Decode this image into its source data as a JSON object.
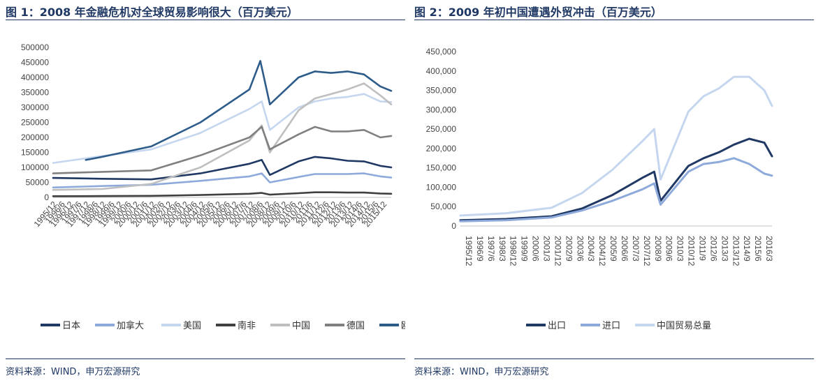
{
  "charts": [
    {
      "title": "图 1：2008 年金融危机对全球贸易影响很大（百万美元）",
      "source": "资料来源：WIND，申万宏源研究",
      "chart_data": {
        "type": "line",
        "title": "图 1：2008 年金融危机对全球贸易影响很大（百万美元）",
        "xlabel": "",
        "ylabel": "",
        "ylim": [
          0,
          500000
        ],
        "yticks": [
          0,
          50000,
          100000,
          150000,
          200000,
          250000,
          300000,
          350000,
          400000,
          450000,
          500000
        ],
        "ytick_labels": [
          "0",
          "50000",
          "100000",
          "150000",
          "200000",
          "250000",
          "300000",
          "350000",
          "400000",
          "450000",
          "500000"
        ],
        "x_start": "1995/12",
        "x_end": "2016/8",
        "x_tick_labels": [
          "1995/12",
          "1996/6",
          "1996/12",
          "1997/6",
          "1997/12",
          "1998/6",
          "1998/12",
          "1999/6",
          "1999/12",
          "2000/6",
          "2000/12",
          "2001/6",
          "2001/12",
          "2002/6",
          "2002/12",
          "2003/6",
          "2003/12",
          "2004/6",
          "2004/12",
          "2005/6",
          "2005/12",
          "2006/6",
          "2006/12",
          "2007/6",
          "2007/12",
          "2008/6",
          "2008/12",
          "2009/6",
          "2009/12",
          "2010/6",
          "2010/12",
          "2011/6",
          "2011/12",
          "2012/6",
          "2012/12",
          "2013/6",
          "2013/12",
          "2014/6",
          "2014/12",
          "2015/6",
          "2015/12"
        ],
        "grid": false,
        "legend_position": "bottom",
        "series": [
          {
            "name": "日本",
            "color": "#1f3864",
            "width": 2.6,
            "x": [
              "1995/12",
              "1998/12",
              "2001/12",
              "2004/12",
              "2007/12",
              "2008/9",
              "2009/3",
              "2010/12",
              "2011/12",
              "2012/12",
              "2013/12",
              "2014/12",
              "2015/12",
              "2016/8"
            ],
            "y": [
              65000,
              62000,
              60000,
              80000,
              112000,
              125000,
              75000,
              120000,
              135000,
              130000,
              122000,
              120000,
              105000,
              100000
            ]
          },
          {
            "name": "加拿大",
            "color": "#8eaadb",
            "width": 2.6,
            "x": [
              "1995/12",
              "1998/12",
              "2001/12",
              "2004/12",
              "2007/12",
              "2008/9",
              "2009/3",
              "2010/12",
              "2011/12",
              "2012/12",
              "2013/12",
              "2014/12",
              "2015/12",
              "2016/8"
            ],
            "y": [
              33000,
              38000,
              42000,
              55000,
              70000,
              80000,
              50000,
              68000,
              78000,
              78000,
              78000,
              80000,
              70000,
              66000
            ]
          },
          {
            "name": "美国",
            "color": "#c5d6ef",
            "width": 2.6,
            "x": [
              "1995/12",
              "1998/12",
              "2001/12",
              "2004/12",
              "2007/12",
              "2008/9",
              "2009/3",
              "2010/12",
              "2011/12",
              "2012/12",
              "2013/12",
              "2014/12",
              "2015/12",
              "2016/8"
            ],
            "y": [
              115000,
              138000,
              160000,
              215000,
              295000,
              320000,
              225000,
              300000,
              320000,
              330000,
              335000,
              345000,
              320000,
              318000
            ]
          },
          {
            "name": "南非",
            "color": "#404040",
            "width": 2.6,
            "x": [
              "1995/12",
              "1998/12",
              "2001/12",
              "2004/12",
              "2007/12",
              "2008/9",
              "2009/3",
              "2010/12",
              "2011/12",
              "2012/12",
              "2013/12",
              "2014/12",
              "2015/12",
              "2016/8"
            ],
            "y": [
              4000,
              4500,
              5000,
              8000,
              12000,
              15000,
              9000,
              14000,
              17000,
              17000,
              16000,
              16000,
              13000,
              12000
            ]
          },
          {
            "name": "中国",
            "color": "#bfbfbf",
            "width": 2.6,
            "x": [
              "1995/12",
              "1998/12",
              "2001/12",
              "2004/12",
              "2007/12",
              "2008/9",
              "2009/3",
              "2010/12",
              "2011/12",
              "2012/12",
              "2013/12",
              "2014/12",
              "2015/12",
              "2016/8"
            ],
            "y": [
              25000,
              28000,
              45000,
              100000,
              190000,
              240000,
              150000,
              290000,
              330000,
              345000,
              360000,
              380000,
              340000,
              310000
            ]
          },
          {
            "name": "德国",
            "color": "#808080",
            "width": 2.6,
            "x": [
              "1995/12",
              "1998/12",
              "2001/12",
              "2004/12",
              "2007/12",
              "2008/9",
              "2009/3",
              "2010/12",
              "2011/12",
              "2012/12",
              "2013/12",
              "2014/12",
              "2015/12",
              "2016/8"
            ],
            "y": [
              80000,
              85000,
              90000,
              140000,
              200000,
              235000,
              160000,
              210000,
              235000,
              220000,
              220000,
              225000,
              200000,
              205000
            ]
          },
          {
            "name": "欧元区",
            "color": "#2e5c8a",
            "width": 2.6,
            "x": [
              "1997/12",
              "1998/12",
              "2001/12",
              "2004/12",
              "2007/12",
              "2008/8",
              "2009/3",
              "2010/12",
              "2011/12",
              "2012/12",
              "2013/12",
              "2014/12",
              "2015/12",
              "2016/8"
            ],
            "y": [
              125000,
              135000,
              170000,
              250000,
              360000,
              455000,
              310000,
              400000,
              420000,
              415000,
              420000,
              410000,
              370000,
              355000
            ]
          }
        ]
      }
    },
    {
      "title": "图 2：2009 年初中国遭遇外贸冲击（百万美元）",
      "source": "资料来源：WIND，申万宏源研究",
      "chart_data": {
        "type": "line",
        "title": "图 2：2009 年初中国遭遇外贸冲击（百万美元）",
        "xlabel": "",
        "ylabel": "",
        "ylim": [
          0,
          450000
        ],
        "yticks": [
          0,
          50000,
          100000,
          150000,
          200000,
          250000,
          300000,
          350000,
          400000,
          450000
        ],
        "ytick_labels": [
          "0",
          "50,000",
          "100,000",
          "150,000",
          "200,000",
          "250,000",
          "300,000",
          "350,000",
          "400,000",
          "450,000"
        ],
        "x_start": "1995/12",
        "x_end": "2016/6",
        "x_tick_labels": [
          "1995/12",
          "1996/9",
          "1997/6",
          "1998/3",
          "1998/12",
          "1999/9",
          "2000/6",
          "2001/3",
          "2001/12",
          "2002/9",
          "2003/6",
          "2004/3",
          "2004/12",
          "2005/9",
          "2006/6",
          "2007/3",
          "2007/12",
          "2008/9",
          "2009/6",
          "2010/3",
          "2010/12",
          "2011/9",
          "2012/6",
          "2013/3",
          "2013/12",
          "2014/9",
          "2015/6",
          "2016/3"
        ],
        "grid": false,
        "legend_position": "bottom",
        "series": [
          {
            "name": "出口",
            "color": "#1f3864",
            "width": 3,
            "x": [
              "1995/12",
              "1998/12",
              "2001/12",
              "2003/12",
              "2005/12",
              "2007/12",
              "2008/9",
              "2009/2",
              "2010/12",
              "2011/12",
              "2012/12",
              "2013/12",
              "2014/12",
              "2015/12",
              "2016/6"
            ],
            "y": [
              15000,
              18000,
              25000,
              45000,
              80000,
              125000,
              140000,
              65000,
              155000,
              175000,
              190000,
              210000,
              225000,
              215000,
              180000
            ]
          },
          {
            "name": "进口",
            "color": "#8eaadb",
            "width": 3,
            "x": [
              "1995/12",
              "1998/12",
              "2001/12",
              "2003/12",
              "2005/12",
              "2007/12",
              "2008/9",
              "2009/2",
              "2010/12",
              "2011/12",
              "2012/12",
              "2013/12",
              "2014/12",
              "2015/12",
              "2016/6"
            ],
            "y": [
              12000,
              15000,
              22000,
              40000,
              65000,
              95000,
              110000,
              55000,
              140000,
              160000,
              165000,
              175000,
              160000,
              135000,
              130000
            ]
          },
          {
            "name": "中国贸易总量",
            "color": "#c5d6ef",
            "width": 3,
            "x": [
              "1995/12",
              "1998/12",
              "2001/12",
              "2003/12",
              "2005/12",
              "2007/12",
              "2008/9",
              "2009/2",
              "2010/12",
              "2011/12",
              "2012/12",
              "2013/12",
              "2014/12",
              "2015/12",
              "2016/6"
            ],
            "y": [
              27000,
              33000,
              47000,
              85000,
              145000,
              220000,
              250000,
              120000,
              295000,
              335000,
              355000,
              385000,
              385000,
              350000,
              310000
            ]
          }
        ]
      }
    }
  ]
}
